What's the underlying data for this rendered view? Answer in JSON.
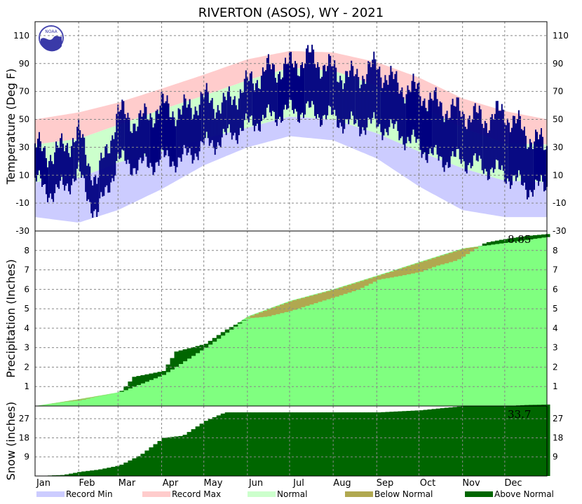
{
  "chart_data": {
    "title": "RIVERTON (ASOS), WY - 2021",
    "x_labels": [
      "Jan",
      "Feb",
      "Mar",
      "Apr",
      "May",
      "Jun",
      "Jul",
      "Aug",
      "Sep",
      "Oct",
      "Nov",
      "Dec"
    ],
    "legend": [
      {
        "label": "Record Min",
        "color": "#ccccff"
      },
      {
        "label": "Record Max",
        "color": "#ffcccc"
      },
      {
        "label": "Normal",
        "color": "#ccffcc"
      },
      {
        "label": "Below Normal",
        "color": "#b0a850"
      },
      {
        "label": "Above Normal",
        "color": "#006600"
      }
    ],
    "panels": [
      {
        "id": "temperature",
        "type": "bar",
        "ylabel": "Temperature (Deg F)",
        "ylim": [
          -30,
          120
        ],
        "yticks": [
          -30,
          -10,
          10,
          30,
          50,
          70,
          90,
          110
        ],
        "colors": {
          "record_min": "#ccccff",
          "record_max": "#ffcccc",
          "normal": "#ccffcc",
          "observed": "#000080"
        },
        "series": [
          {
            "name": "Record Max",
            "x": [
              1,
              32,
              60,
              91,
              121,
              152,
              182,
              213,
              244,
              274,
              305,
              335,
              365
            ],
            "values": [
              50,
              55,
              62,
              72,
              82,
              93,
              99,
              98,
              91,
              80,
              65,
              56,
              50
            ]
          },
          {
            "name": "Normal High",
            "x": [
              1,
              32,
              60,
              91,
              121,
              152,
              182,
              213,
              244,
              274,
              305,
              335,
              365
            ],
            "values": [
              32,
              36,
              46,
              57,
              67,
              78,
              87,
              85,
              74,
              60,
              44,
              33,
              32
            ]
          },
          {
            "name": "Normal Low",
            "x": [
              1,
              32,
              60,
              91,
              121,
              152,
              182,
              213,
              244,
              274,
              305,
              335,
              365
            ],
            "values": [
              5,
              8,
              19,
              27,
              36,
              44,
              52,
              50,
              40,
              27,
              15,
              6,
              5
            ]
          },
          {
            "name": "Record Min",
            "x": [
              1,
              32,
              60,
              91,
              121,
              152,
              182,
              213,
              244,
              274,
              305,
              335,
              365
            ],
            "values": [
              -20,
              -24,
              -15,
              0,
              17,
              30,
              38,
              35,
              22,
              2,
              -15,
              -20,
              -20
            ]
          },
          {
            "name": "Observed High",
            "x": [
              1,
              15,
              32,
              45,
              60,
              75,
              91,
              105,
              121,
              135,
              152,
              165,
              182,
              196,
              213,
              227,
              244,
              258,
              274,
              288,
              305,
              320,
              335,
              350,
              365
            ],
            "values": [
              30,
              25,
              40,
              5,
              55,
              48,
              60,
              55,
              65,
              60,
              75,
              85,
              88,
              95,
              85,
              80,
              88,
              75,
              70,
              60,
              55,
              50,
              55,
              40,
              30
            ]
          },
          {
            "name": "Observed Low",
            "x": [
              1,
              15,
              32,
              45,
              60,
              75,
              91,
              105,
              121,
              135,
              152,
              165,
              182,
              196,
              213,
              227,
              244,
              258,
              274,
              288,
              305,
              320,
              335,
              350,
              365
            ],
            "values": [
              10,
              0,
              15,
              -15,
              25,
              20,
              25,
              25,
              35,
              40,
              50,
              55,
              60,
              60,
              55,
              50,
              50,
              45,
              35,
              25,
              25,
              20,
              15,
              5,
              5
            ]
          }
        ]
      },
      {
        "id": "precipitation",
        "type": "area",
        "ylabel": "Precipitation (Inches)",
        "ylim": [
          0,
          9
        ],
        "yticks": [
          1,
          2,
          3,
          4,
          5,
          6,
          7,
          8
        ],
        "annotation": "8.85",
        "series": [
          {
            "name": "Normal",
            "x": [
              1,
              32,
              60,
              91,
              121,
              152,
              182,
              213,
              244,
              274,
              305,
              335,
              365
            ],
            "values": [
              0,
              0.35,
              0.7,
              1.6,
              3.0,
              4.6,
              5.4,
              6.0,
              6.7,
              7.4,
              8.1,
              8.4,
              8.7
            ]
          },
          {
            "name": "Observed",
            "x": [
              1,
              20,
              32,
              45,
              60,
              70,
              91,
              100,
              121,
              135,
              150,
              165,
              182,
              195,
              213,
              230,
              244,
              260,
              274,
              285,
              300,
              320,
              335,
              350,
              365
            ],
            "values": [
              0,
              0.2,
              0.3,
              0.5,
              0.7,
              1.5,
              1.8,
              2.8,
              3.2,
              3.9,
              4.5,
              4.6,
              4.9,
              5.2,
              5.6,
              6.0,
              6.5,
              6.7,
              6.9,
              7.2,
              7.5,
              8.4,
              8.6,
              8.75,
              8.85
            ]
          }
        ]
      },
      {
        "id": "snow",
        "type": "area",
        "ylabel": "Snow (inches)",
        "ylim": [
          0,
          33
        ],
        "yticks": [
          9,
          18,
          27
        ],
        "annotation": "33.7",
        "series": [
          {
            "name": "Observed",
            "x": [
              1,
              20,
              32,
              45,
              60,
              75,
              91,
              105,
              121,
              135,
              152,
              182,
              213,
              244,
              274,
              305,
              335,
              350,
              365
            ],
            "values": [
              0,
              0.5,
              2,
              3,
              5,
              10,
              18,
              19,
              26,
              30,
              30,
              30,
              30,
              30,
              31,
              33,
              33,
              33.5,
              33.7
            ]
          }
        ]
      }
    ]
  }
}
